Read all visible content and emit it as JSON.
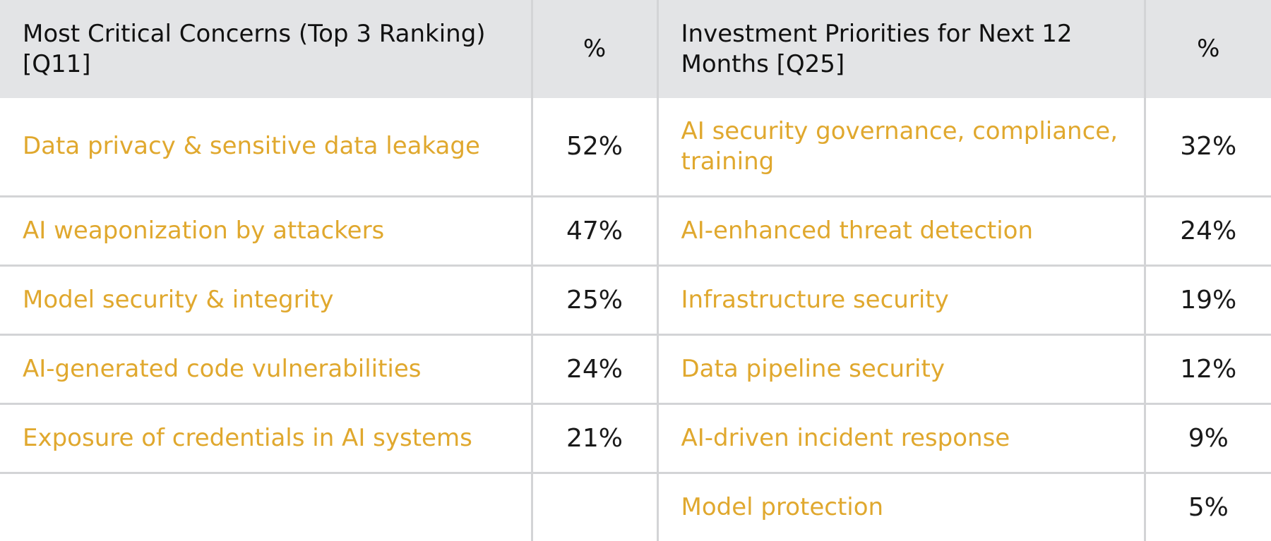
{
  "headers": {
    "concerns": "Most Critical Concerns (Top 3 Ranking) [Q11]",
    "concerns_pct": "%",
    "investments": "Investment Priorities for Next 12 Months [Q25]",
    "investments_pct": "%"
  },
  "rows": [
    {
      "concern": "Data privacy & sensitive data leakage",
      "concern_pct": "52%",
      "investment": "AI security governance, compliance, training",
      "investment_pct": "32%"
    },
    {
      "concern": "AI weaponization by attackers",
      "concern_pct": "47%",
      "investment": "AI-enhanced threat detection",
      "investment_pct": "24%"
    },
    {
      "concern": "Model security & integrity",
      "concern_pct": "25%",
      "investment": "Infrastructure security",
      "investment_pct": "19%"
    },
    {
      "concern": "AI-generated code vulnerabilities",
      "concern_pct": "24%",
      "investment": "Data pipeline security",
      "investment_pct": "12%"
    },
    {
      "concern": "Exposure of credentials in AI systems",
      "concern_pct": "21%",
      "investment": "AI-driven incident response",
      "investment_pct": "9%"
    },
    {
      "concern": "",
      "concern_pct": "",
      "investment": "Model protection",
      "investment_pct": "5%"
    }
  ],
  "colors": {
    "header_bg": "#e3e4e6",
    "label_text": "#e0a82e",
    "value_text": "#1a1a1a",
    "grid": "#d3d4d6"
  }
}
